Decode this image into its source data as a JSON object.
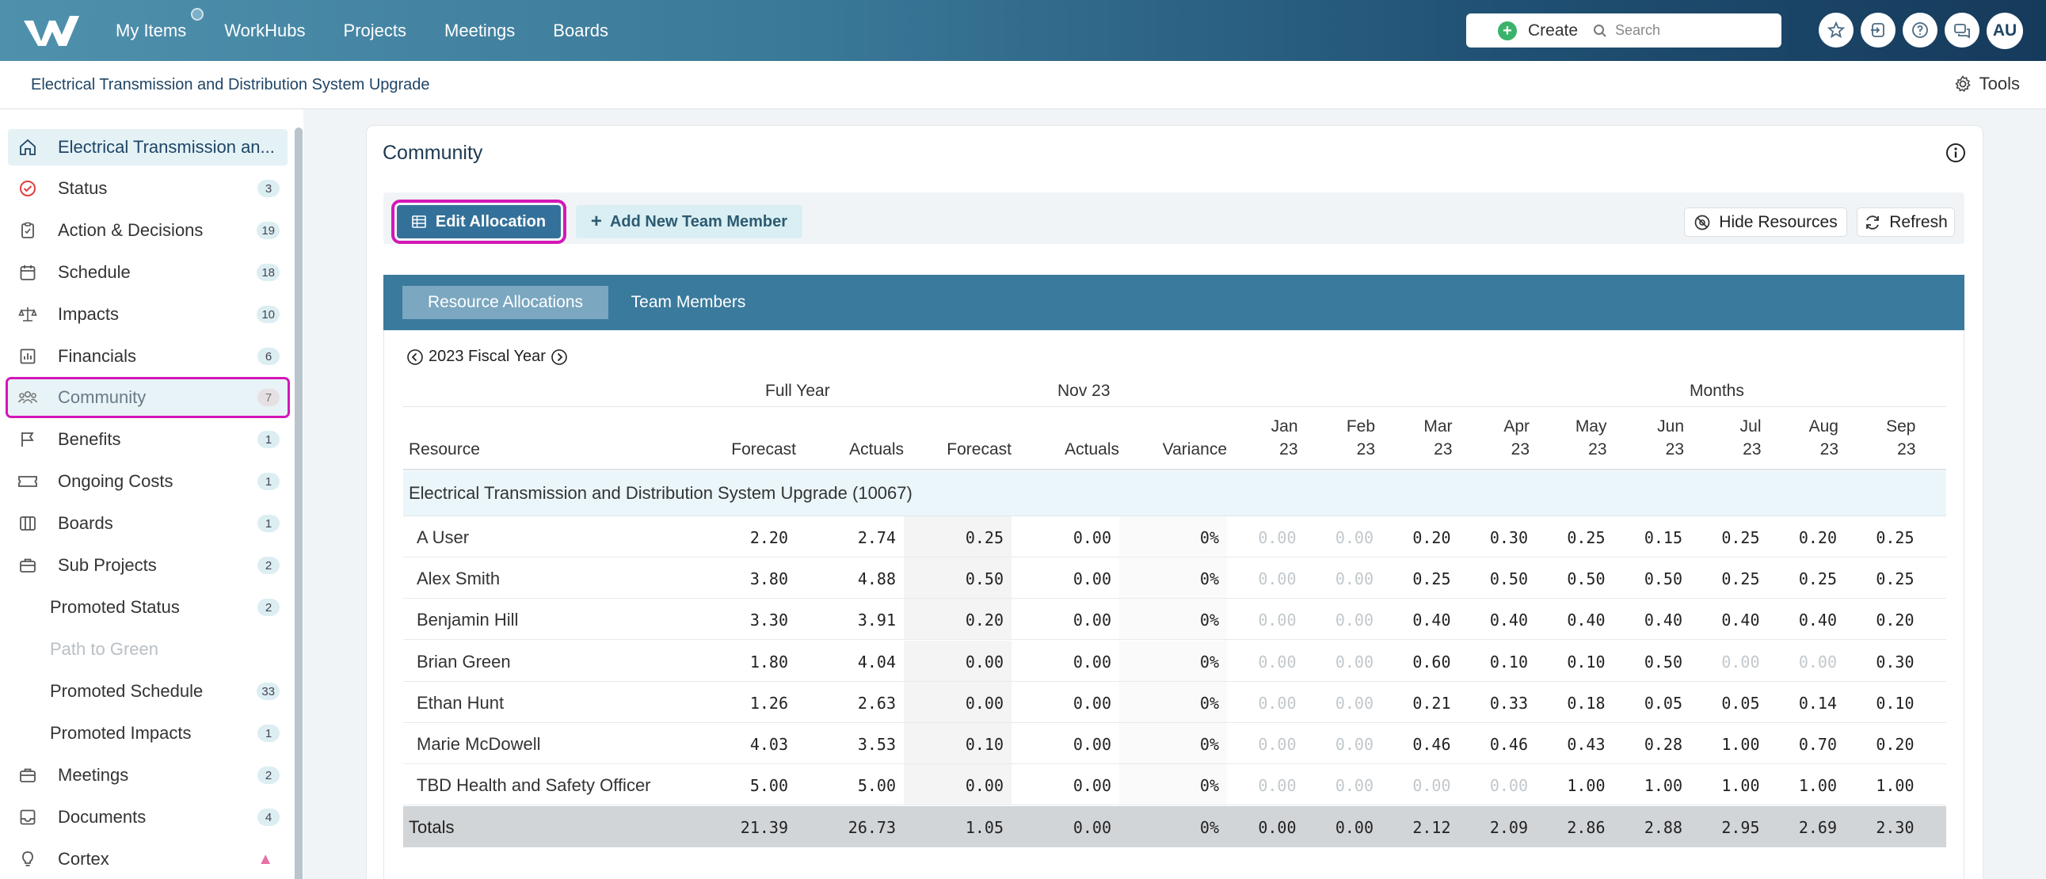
{
  "nav": {
    "items": [
      "My Items",
      "WorkHubs",
      "Projects",
      "Meetings",
      "Boards"
    ],
    "create_label": "Create",
    "search_placeholder": "Search",
    "avatar_initials": "AU",
    "icons": [
      "star-icon",
      "sign-in-icon",
      "help-icon",
      "chat-icon"
    ]
  },
  "subheader": {
    "breadcrumb": "Electrical Transmission and Distribution System Upgrade",
    "tools_label": "Tools"
  },
  "sidebar": {
    "items": [
      {
        "label": "Electrical Transmission an...",
        "icon": "home-icon",
        "count": ""
      },
      {
        "label": "Status",
        "icon": "check-circle-icon",
        "count": "3"
      },
      {
        "label": "Action & Decisions",
        "icon": "clipboard-icon",
        "count": "19"
      },
      {
        "label": "Schedule",
        "icon": "calendar-icon",
        "count": "18"
      },
      {
        "label": "Impacts",
        "icon": "scale-icon",
        "count": "10"
      },
      {
        "label": "Financials",
        "icon": "chart-icon",
        "count": "6"
      },
      {
        "label": "Community",
        "icon": "people-icon",
        "count": "7"
      },
      {
        "label": "Benefits",
        "icon": "flag-icon",
        "count": "1"
      },
      {
        "label": "Ongoing Costs",
        "icon": "ticket-icon",
        "count": "1"
      },
      {
        "label": "Boards",
        "icon": "columns-icon",
        "count": "1"
      },
      {
        "label": "Sub Projects",
        "icon": "briefcase-icon",
        "count": "2"
      },
      {
        "label": "Promoted Status",
        "icon": "",
        "count": "2"
      },
      {
        "label": "Path to Green",
        "icon": "",
        "count": ""
      },
      {
        "label": "Promoted Schedule",
        "icon": "",
        "count": "33"
      },
      {
        "label": "Promoted Impacts",
        "icon": "",
        "count": "1"
      },
      {
        "label": "Meetings",
        "icon": "briefcase-icon",
        "count": "2"
      },
      {
        "label": "Documents",
        "icon": "inbox-icon",
        "count": "4"
      },
      {
        "label": "Cortex",
        "icon": "bulb-icon",
        "count": ""
      }
    ]
  },
  "card": {
    "title": "Community",
    "edit_label": "Edit Allocation",
    "add_label": "Add New Team Member",
    "hide_label": "Hide Resources",
    "refresh_label": "Refresh",
    "tabs": [
      "Resource Allocations",
      "Team Members"
    ],
    "fiscal_year": "2023 Fiscal Year"
  },
  "table": {
    "groups": {
      "full_year": "Full Year",
      "nov": "Nov 23",
      "months": "Months"
    },
    "headers": {
      "resource": "Resource",
      "fy_forecast": "Forecast",
      "fy_actuals": "Actuals",
      "nov_forecast": "Forecast",
      "nov_actuals": "Actuals",
      "variance": "Variance",
      "months": [
        [
          "Jan",
          "23"
        ],
        [
          "Feb",
          "23"
        ],
        [
          "Mar",
          "23"
        ],
        [
          "Apr",
          "23"
        ],
        [
          "May",
          "23"
        ],
        [
          "Jun",
          "23"
        ],
        [
          "Jul",
          "23"
        ],
        [
          "Aug",
          "23"
        ],
        [
          "Sep",
          "23"
        ]
      ]
    },
    "project_row": "Electrical Transmission and Distribution System Upgrade (10067)",
    "rows": [
      {
        "name": "A User",
        "fy_f": "2.20",
        "fy_a": "2.74",
        "nov_f": "0.25",
        "nov_a": "0.00",
        "var": "0%",
        "months": [
          "0.00",
          "0.00",
          "0.20",
          "0.30",
          "0.25",
          "0.15",
          "0.25",
          "0.20",
          "0.25"
        ]
      },
      {
        "name": "Alex Smith",
        "fy_f": "3.80",
        "fy_a": "4.88",
        "nov_f": "0.50",
        "nov_a": "0.00",
        "var": "0%",
        "months": [
          "0.00",
          "0.00",
          "0.25",
          "0.50",
          "0.50",
          "0.50",
          "0.25",
          "0.25",
          "0.25"
        ]
      },
      {
        "name": "Benjamin Hill",
        "fy_f": "3.30",
        "fy_a": "3.91",
        "nov_f": "0.20",
        "nov_a": "0.00",
        "var": "0%",
        "months": [
          "0.00",
          "0.00",
          "0.40",
          "0.40",
          "0.40",
          "0.40",
          "0.40",
          "0.40",
          "0.20"
        ]
      },
      {
        "name": "Brian Green",
        "fy_f": "1.80",
        "fy_a": "4.04",
        "nov_f": "0.00",
        "nov_a": "0.00",
        "var": "0%",
        "months": [
          "0.00",
          "0.00",
          "0.60",
          "0.10",
          "0.10",
          "0.50",
          "0.00",
          "0.00",
          "0.30"
        ]
      },
      {
        "name": "Ethan Hunt",
        "fy_f": "1.26",
        "fy_a": "2.63",
        "nov_f": "0.00",
        "nov_a": "0.00",
        "var": "0%",
        "months": [
          "0.00",
          "0.00",
          "0.21",
          "0.33",
          "0.18",
          "0.05",
          "0.05",
          "0.14",
          "0.10"
        ]
      },
      {
        "name": "Marie McDowell",
        "fy_f": "4.03",
        "fy_a": "3.53",
        "nov_f": "0.10",
        "nov_a": "0.00",
        "var": "0%",
        "months": [
          "0.00",
          "0.00",
          "0.46",
          "0.46",
          "0.43",
          "0.28",
          "1.00",
          "0.70",
          "0.20"
        ]
      },
      {
        "name": "TBD Health and Safety Officer",
        "fy_f": "5.00",
        "fy_a": "5.00",
        "nov_f": "0.00",
        "nov_a": "0.00",
        "var": "0%",
        "months": [
          "0.00",
          "0.00",
          "0.00",
          "0.00",
          "1.00",
          "1.00",
          "1.00",
          "1.00",
          "1.00"
        ]
      }
    ],
    "totals": {
      "name": "Totals",
      "fy_f": "21.39",
      "fy_a": "26.73",
      "nov_f": "1.05",
      "nov_a": "0.00",
      "var": "0%",
      "months": [
        "0.00",
        "0.00",
        "2.12",
        "2.09",
        "2.86",
        "2.88",
        "2.95",
        "2.69",
        "2.30"
      ]
    }
  }
}
